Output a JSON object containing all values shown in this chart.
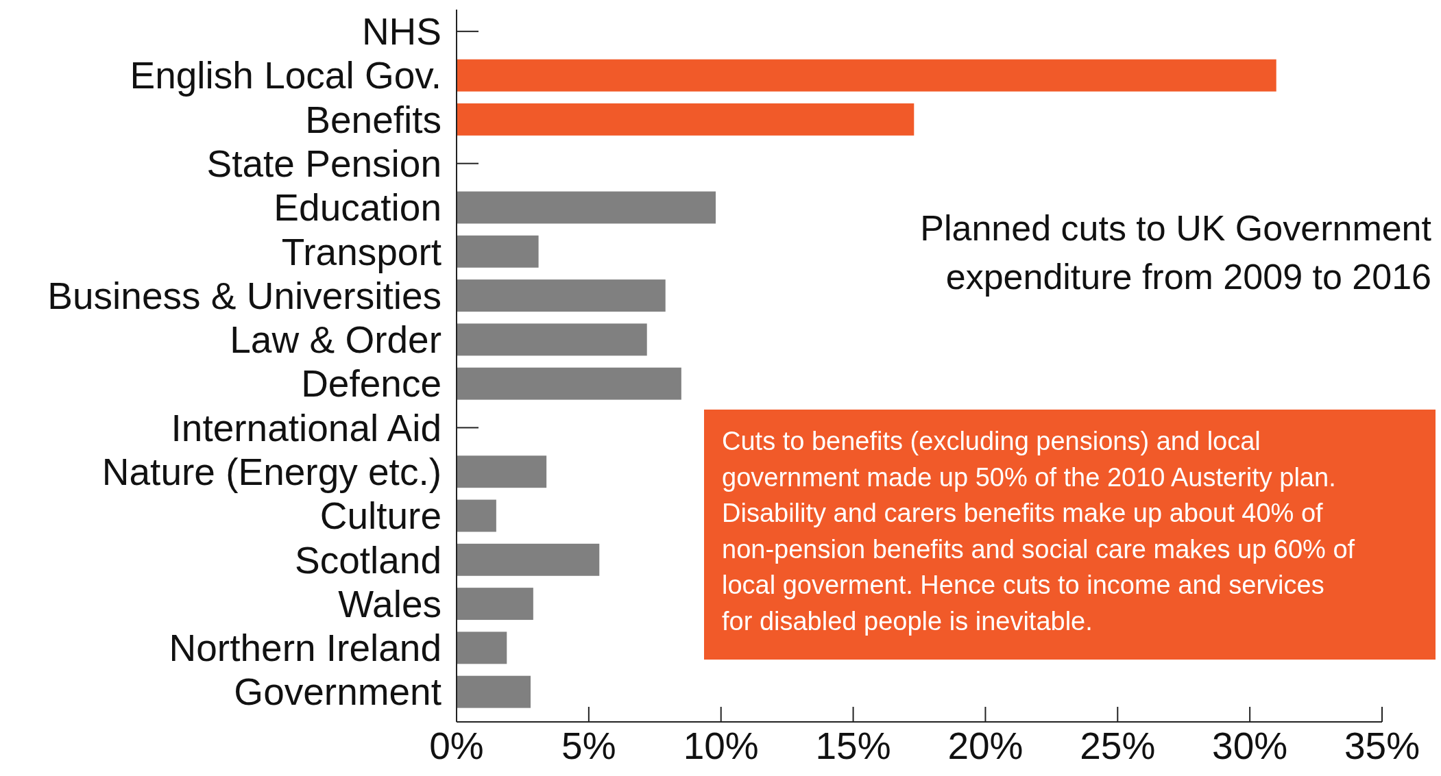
{
  "chart_data": {
    "type": "bar",
    "orientation": "horizontal",
    "title": "Planned cuts to UK Government expenditure from 2009 to 2016",
    "categories": [
      "NHS",
      "English Local Gov.",
      "Benefits",
      "State Pension",
      "Education",
      "Transport",
      "Business & Universities",
      "Law & Order",
      "Defence",
      "International Aid",
      "Nature (Energy etc.)",
      "Culture",
      "Scotland",
      "Wales",
      "Northern Ireland",
      "Government"
    ],
    "values": [
      0,
      31,
      17.3,
      0,
      9.8,
      3.1,
      7.9,
      7.2,
      8.5,
      0,
      3.4,
      1.5,
      5.4,
      2.9,
      1.9,
      2.8
    ],
    "colors": [
      "#808080",
      "#f15a29",
      "#f15a29",
      "#808080",
      "#808080",
      "#808080",
      "#808080",
      "#808080",
      "#808080",
      "#808080",
      "#808080",
      "#808080",
      "#808080",
      "#808080",
      "#808080",
      "#808080"
    ],
    "xlim": [
      0,
      35
    ],
    "xticks": [
      {
        "value": 0,
        "label": "0%"
      },
      {
        "value": 5,
        "label": "5%"
      },
      {
        "value": 10,
        "label": "10%"
      },
      {
        "value": 15,
        "label": "15%"
      },
      {
        "value": 20,
        "label": "20%"
      },
      {
        "value": 25,
        "label": "25%"
      },
      {
        "value": 30,
        "label": "30%"
      },
      {
        "value": 35,
        "label": "35%"
      }
    ],
    "annotations": [
      "Cuts to benefits (excluding pensions) and local government made up 50% of the 2010 Austerity plan. Disability and carers benefits make up about 40% of non-pension benefits and social care makes up 60% of local goverment. Hence cuts to income and services for disabled people is inevitable."
    ],
    "grid": false
  }
}
